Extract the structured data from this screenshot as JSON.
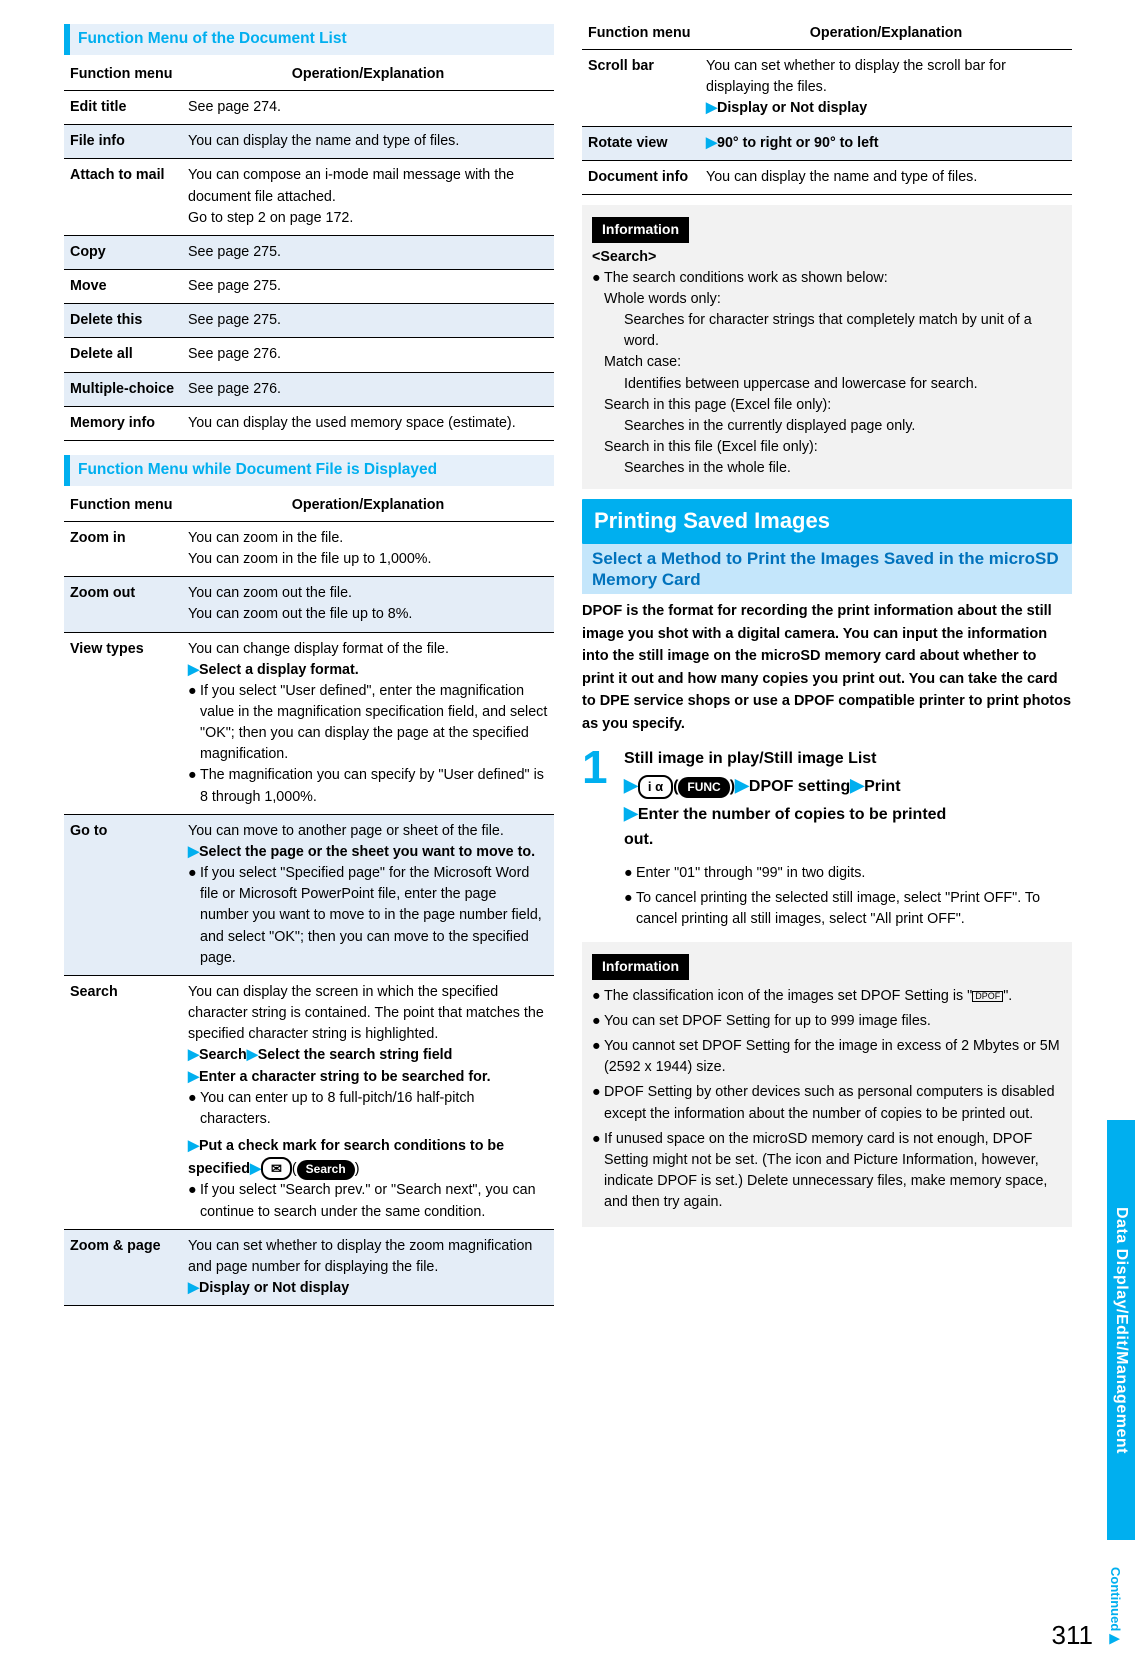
{
  "left": {
    "bar1": "Function Menu of the Document List",
    "t1": {
      "h1": "Function menu",
      "h2": "Operation/Explanation",
      "rows": [
        {
          "alt": false,
          "k": "Edit title",
          "v": "See page 274."
        },
        {
          "alt": true,
          "k": "File info",
          "v": "You can display the name and type of files."
        },
        {
          "alt": false,
          "k": "Attach to mail",
          "v": "You can compose an i-mode mail message with the document file attached.\nGo to step 2 on page 172."
        },
        {
          "alt": true,
          "k": "Copy",
          "v": "See page 275."
        },
        {
          "alt": false,
          "k": "Move",
          "v": "See page 275."
        },
        {
          "alt": true,
          "k": "Delete this",
          "v": "See page 275."
        },
        {
          "alt": false,
          "k": "Delete all",
          "v": "See page 276."
        },
        {
          "alt": true,
          "k": "Multiple-choice",
          "v": "See page 276."
        },
        {
          "alt": false,
          "k": "Memory info",
          "v": "You can display the used memory space (estimate)."
        }
      ]
    },
    "bar2": "Function Menu while Document File is Displayed",
    "t2": {
      "h1": "Function menu",
      "h2": "Operation/Explanation",
      "rows": [
        {
          "alt": false,
          "k": "Zoom in",
          "lines": [
            {
              "t": "plain",
              "s": "You can zoom in the file."
            },
            {
              "t": "plain",
              "s": "You can zoom in the file up to 1,000%."
            }
          ]
        },
        {
          "alt": true,
          "k": "Zoom out",
          "lines": [
            {
              "t": "plain",
              "s": "You can zoom out the file."
            },
            {
              "t": "plain",
              "s": "You can zoom out the file up to 8%."
            }
          ]
        },
        {
          "alt": false,
          "k": "View types",
          "lines": [
            {
              "t": "plain",
              "s": "You can change display format of the file."
            },
            {
              "t": "tri",
              "s": "Select a display format."
            },
            {
              "t": "p",
              "s": "If you select \"User defined\", enter the magnification value in the magnification specification field, and select \"OK\"; then you can display the page at the specified magnification."
            },
            {
              "t": "p",
              "s": "The magnification you can specify by \"User defined\" is 8 through 1,000%."
            }
          ]
        },
        {
          "alt": true,
          "k": "Go to",
          "lines": [
            {
              "t": "plain",
              "s": "You can move to another page or sheet of the file."
            },
            {
              "t": "tri",
              "s": "Select the page or the sheet you want to move to."
            },
            {
              "t": "p",
              "s": "If you select \"Specified page\" for the Microsoft Word file or Microsoft PowerPoint file, enter the page number you want to move to in the page number field, and select \"OK\"; then you can move to the specified page."
            }
          ]
        },
        {
          "alt": false,
          "k": "Search",
          "lines": [
            {
              "t": "plain",
              "s": "You can display the screen in which the specified character string is contained. The point that matches the specified character string is highlighted."
            },
            {
              "t": "tri2",
              "a": "Search",
              "b": "Select the search string field"
            },
            {
              "t": "tri",
              "s": "Enter a character string to be searched for."
            },
            {
              "t": "p",
              "s": "You can enter up to 8 full-pitch/16 half-pitch characters."
            },
            {
              "t": "tricheck",
              "a": "Put a check mark for search conditions to be specified",
              "key": "✉",
              "pill": "Search"
            },
            {
              "t": "p",
              "s": "If you select \"Search prev.\" or \"Search next\", you can continue to search under the same condition."
            }
          ]
        },
        {
          "alt": true,
          "k": "Zoom & page",
          "lines": [
            {
              "t": "plain",
              "s": "You can set whether to display the zoom magnification and page number for displaying the file."
            },
            {
              "t": "tri",
              "s": "Display or Not display"
            }
          ]
        }
      ]
    }
  },
  "right": {
    "t3": {
      "h1": "Function menu",
      "h2": "Operation/Explanation",
      "rows": [
        {
          "alt": false,
          "k": "Scroll bar",
          "lines": [
            {
              "t": "plain",
              "s": "You can set whether to display the scroll bar for displaying the files."
            },
            {
              "t": "tri",
              "s": "Display or Not display"
            }
          ]
        },
        {
          "alt": true,
          "k": "Rotate view",
          "lines": [
            {
              "t": "trionly",
              "s": "90° to right or 90° to left"
            }
          ]
        },
        {
          "alt": false,
          "k": "Document info",
          "lines": [
            {
              "t": "plain",
              "s": "You can display the name and type of files."
            }
          ]
        }
      ]
    },
    "info1_label": "Information",
    "info1_title": "<Search>",
    "info1_lead": "The search conditions work as shown below:",
    "info1_items": [
      {
        "h": "Whole words only:",
        "b": "Searches for character strings that completely match by unit of a word."
      },
      {
        "h": "Match case:",
        "b": "Identifies between uppercase and lowercase for search."
      },
      {
        "h": "Search in this page (Excel file only):",
        "b": "Searches in the currently displayed page only."
      },
      {
        "h": "Search in this file (Excel file only):",
        "b": "Searches in the whole file."
      }
    ],
    "big_title": "Printing Saved Images",
    "sub_title": "Select a Method to Print the Images Saved in the microSD Memory Card",
    "lead": "DPOF is the format for recording the print information about the still image you shot with a digital camera. You can input the information into the still image on the microSD memory card about whether to print it out and how many copies you print out. You can take the card to DPE service shops or use a DPOF compatible printer to print photos as you specify.",
    "step_num": "1",
    "step_lines": {
      "l1": "Still image in play/Still image List",
      "key1": "i α",
      "pill1": "FUNC",
      "mid1": "DPOF setting",
      "mid2": "Print",
      "l3a": "Enter the number of copies to be printed",
      "l3b": "out."
    },
    "step_notes": [
      "Enter \"01\" through \"99\" in two digits.",
      "To cancel printing the selected still image, select \"Print OFF\". To cancel printing all still images, select \"All print OFF\"."
    ],
    "info2_label": "Information",
    "info2_items": [
      "The classification icon of the images set DPOF Setting is \"      \".",
      "You can set DPOF Setting for up to 999 image files.",
      "You cannot set DPOF Setting for the image in excess of 2 Mbytes or 5M (2592 x 1944) size.",
      "DPOF Setting by other devices such as personal computers is disabled except the information about the number of copies to be printed out.",
      "If unused space on the microSD memory card is not enough, DPOF Setting might not be set. (The icon and Picture Information, however, indicate DPOF is set.) Delete unnecessary files, make memory space, and then try again."
    ]
  },
  "side_tab": "Data Display/Edit/Management",
  "continued": "Continued▶",
  "page": "311"
}
